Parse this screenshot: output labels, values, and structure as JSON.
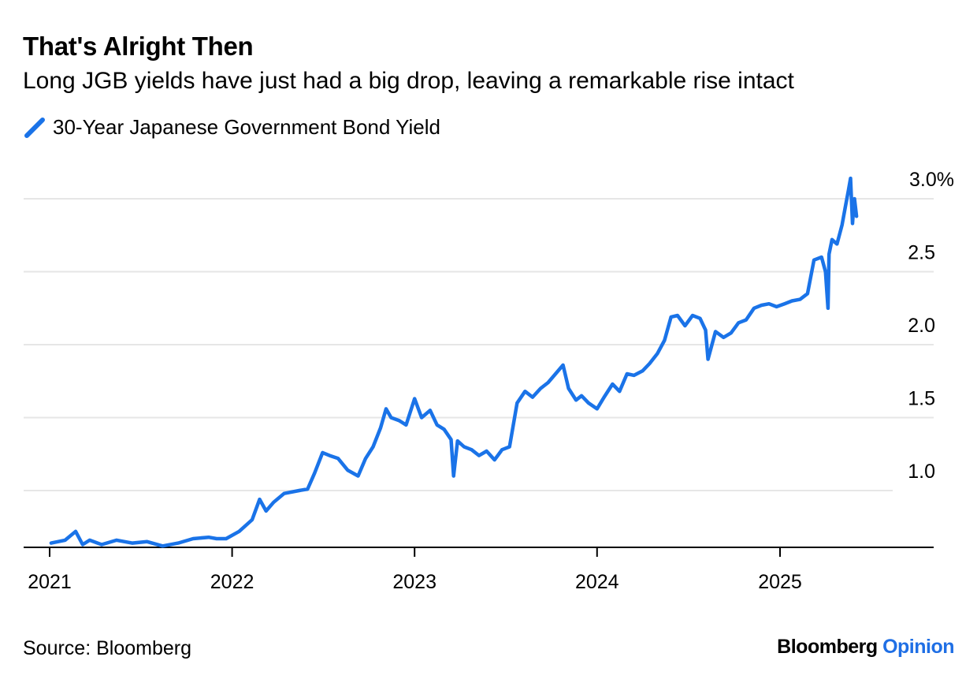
{
  "header": {
    "title": "That's Alright Then",
    "subtitle": "Long JGB yields have just had a big drop, leaving a remarkable rise intact"
  },
  "legend": {
    "label": "30-Year Japanese Government Bond Yield",
    "color": "#1a73e8",
    "icon": "diagonal-line-swatch"
  },
  "footer": {
    "source": "Source: Bloomberg",
    "brand_main": "Bloomberg",
    "brand_suffix": "Opinion"
  },
  "chart_data": {
    "type": "line",
    "title": "That's Alright Then",
    "subtitle": "Long JGB yields have just had a big drop, leaving a remarkable rise intact",
    "xlabel": "",
    "ylabel": "",
    "x_ticks": [
      "2021",
      "2022",
      "2023",
      "2024",
      "2025"
    ],
    "y_ticks": [
      "1.0",
      "1.5",
      "2.0",
      "2.5",
      "3.0%"
    ],
    "y_tick_values": [
      1.0,
      1.5,
      2.0,
      2.5,
      3.0
    ],
    "ylim": [
      0.6,
      3.2
    ],
    "y_axis_side": "right",
    "grid": "horizontal",
    "legend_position": "top-left",
    "series": [
      {
        "name": "30-Year Japanese Government Bond Yield",
        "color": "#1a73e8",
        "x": [
          "2021-01-04",
          "2021-02-01",
          "2021-02-22",
          "2021-03-08",
          "2021-03-22",
          "2021-04-15",
          "2021-05-15",
          "2021-06-15",
          "2021-07-15",
          "2021-08-15",
          "2021-09-15",
          "2021-10-15",
          "2021-11-15",
          "2021-12-01",
          "2021-12-20",
          "2022-01-15",
          "2022-02-10",
          "2022-02-25",
          "2022-03-10",
          "2022-03-25",
          "2022-04-15",
          "2022-05-15",
          "2022-06-01",
          "2022-06-15",
          "2022-07-01",
          "2022-07-15",
          "2022-08-01",
          "2022-08-20",
          "2022-09-10",
          "2022-09-25",
          "2022-10-10",
          "2022-10-25",
          "2022-11-05",
          "2022-11-15",
          "2022-12-01",
          "2022-12-15",
          "2023-01-01",
          "2023-01-15",
          "2023-02-01",
          "2023-02-15",
          "2023-03-01",
          "2023-03-15",
          "2023-03-20",
          "2023-03-28",
          "2023-04-10",
          "2023-04-25",
          "2023-05-10",
          "2023-05-25",
          "2023-06-10",
          "2023-06-25",
          "2023-07-10",
          "2023-07-25",
          "2023-08-10",
          "2023-08-25",
          "2023-09-10",
          "2023-09-25",
          "2023-10-10",
          "2023-10-25",
          "2023-11-05",
          "2023-11-20",
          "2023-12-01",
          "2023-12-15",
          "2024-01-01",
          "2024-01-15",
          "2024-02-01",
          "2024-02-15",
          "2024-03-01",
          "2024-03-15",
          "2024-04-01",
          "2024-04-15",
          "2024-05-01",
          "2024-05-15",
          "2024-05-28",
          "2024-06-10",
          "2024-06-25",
          "2024-07-10",
          "2024-07-25",
          "2024-08-05",
          "2024-08-10",
          "2024-08-25",
          "2024-09-10",
          "2024-09-25",
          "2024-10-10",
          "2024-10-25",
          "2024-11-10",
          "2024-11-25",
          "2024-12-10",
          "2024-12-25",
          "2025-01-10",
          "2025-01-25",
          "2025-02-10",
          "2025-02-25",
          "2025-03-10",
          "2025-03-25",
          "2025-04-02",
          "2025-04-07",
          "2025-04-09",
          "2025-04-15",
          "2025-04-25",
          "2025-05-05",
          "2025-05-12",
          "2025-05-18",
          "2025-05-22",
          "2025-05-26",
          "2025-05-28",
          "2025-05-30",
          "2025-06-03"
        ],
        "values": [
          0.64,
          0.66,
          0.72,
          0.63,
          0.66,
          0.63,
          0.66,
          0.64,
          0.65,
          0.62,
          0.64,
          0.67,
          0.68,
          0.67,
          0.67,
          0.72,
          0.8,
          0.94,
          0.86,
          0.92,
          0.98,
          1.0,
          1.01,
          1.12,
          1.26,
          1.24,
          1.22,
          1.14,
          1.1,
          1.22,
          1.3,
          1.43,
          1.56,
          1.5,
          1.48,
          1.45,
          1.63,
          1.5,
          1.55,
          1.45,
          1.42,
          1.35,
          1.1,
          1.34,
          1.3,
          1.28,
          1.24,
          1.27,
          1.21,
          1.28,
          1.3,
          1.6,
          1.68,
          1.64,
          1.7,
          1.74,
          1.8,
          1.86,
          1.7,
          1.62,
          1.65,
          1.6,
          1.56,
          1.64,
          1.73,
          1.68,
          1.8,
          1.79,
          1.82,
          1.87,
          1.94,
          2.03,
          2.19,
          2.2,
          2.13,
          2.2,
          2.18,
          2.1,
          1.9,
          2.09,
          2.05,
          2.08,
          2.15,
          2.17,
          2.25,
          2.27,
          2.28,
          2.26,
          2.28,
          2.3,
          2.31,
          2.35,
          2.58,
          2.6,
          2.5,
          2.25,
          2.62,
          2.72,
          2.69,
          2.82,
          2.95,
          3.06,
          3.14,
          2.83,
          2.93,
          3.0,
          2.88
        ]
      }
    ]
  }
}
